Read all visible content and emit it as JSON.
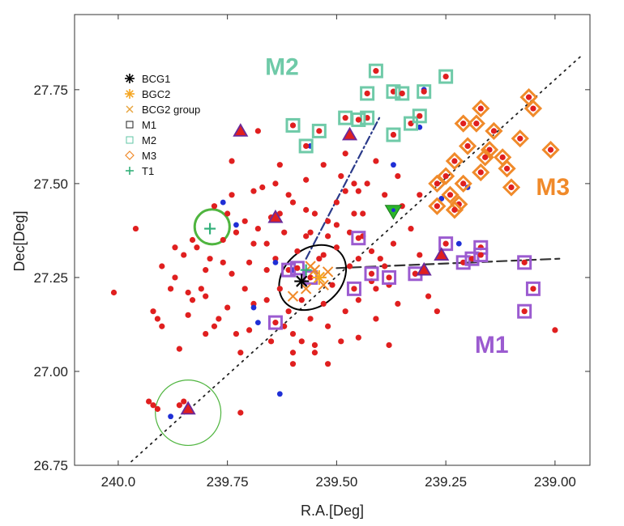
{
  "chart_data": {
    "type": "scatter",
    "xlabel": "R.A.[Deg]",
    "ylabel": "Dec[Deg]",
    "xlim": [
      240.1,
      238.92
    ],
    "ylim": [
      26.75,
      27.95
    ],
    "x_ticks": [
      240.0,
      239.75,
      239.5,
      239.25,
      239.0
    ],
    "x_tick_labels": [
      "240.0",
      "239.75",
      "239.50",
      "239.25",
      "239.00"
    ],
    "y_ticks": [
      26.75,
      27.0,
      27.25,
      27.5,
      27.75
    ],
    "y_tick_labels": [
      "26.75",
      "27.00",
      "27.25",
      "27.50",
      "27.75"
    ],
    "grid": false,
    "legend_position": "top-left",
    "legend": [
      {
        "label": "BCG1",
        "marker": "asterisk",
        "color": "#000000"
      },
      {
        "label": "BGC2",
        "marker": "asterisk",
        "color": "#f5a623"
      },
      {
        "label": "BCG2 group",
        "marker": "x",
        "color": "#e8a33c"
      },
      {
        "label": "M1",
        "marker": "square",
        "color": "#222222"
      },
      {
        "label": "M2",
        "marker": "square",
        "color": "#5fc4a4"
      },
      {
        "label": "M3",
        "marker": "diamond",
        "color": "#f08a2a"
      },
      {
        "label": "T1",
        "marker": "plus",
        "color": "#33b07a"
      }
    ],
    "group_labels": [
      {
        "text": "M2",
        "x": 239.625,
        "y": 27.79,
        "color": "#6fcaa8"
      },
      {
        "text": "M3",
        "x": 239.005,
        "y": 27.47,
        "color": "#f08a2a"
      },
      {
        "text": "M1",
        "x": 239.145,
        "y": 27.05,
        "color": "#9b5bd0"
      }
    ],
    "colors": {
      "member": "#e01f1f",
      "blue": "#1f2fd6",
      "m1_square": "#9b5bd0",
      "m2_square": "#6fcaa8",
      "m3_diamond": "#f08a2a",
      "t1": "#33b07a",
      "triangle_edge": "#6a2a9a",
      "ellipse": "#000000",
      "circle": "#4fb53f",
      "dash_line": "#333333",
      "dashdot_line": "#2a3a8a"
    },
    "series": [
      {
        "name": "M1",
        "marker": "square",
        "points": [
          [
            239.45,
            27.355
          ],
          [
            239.46,
            27.22
          ],
          [
            239.42,
            27.26
          ],
          [
            239.38,
            27.25
          ],
          [
            239.32,
            27.26
          ],
          [
            239.25,
            27.34
          ],
          [
            239.21,
            27.29
          ],
          [
            239.19,
            27.3
          ],
          [
            239.17,
            27.33
          ],
          [
            239.17,
            27.31
          ],
          [
            239.07,
            27.29
          ],
          [
            239.05,
            27.22
          ],
          [
            239.07,
            27.16
          ],
          [
            239.61,
            27.27
          ],
          [
            239.56,
            27.25
          ],
          [
            239.59,
            27.275
          ],
          [
            239.64,
            27.13
          ]
        ]
      },
      {
        "name": "M2",
        "marker": "square",
        "points": [
          [
            239.41,
            27.8
          ],
          [
            239.37,
            27.745
          ],
          [
            239.35,
            27.74
          ],
          [
            239.3,
            27.745
          ],
          [
            239.25,
            27.785
          ],
          [
            239.43,
            27.74
          ],
          [
            239.37,
            27.63
          ],
          [
            239.33,
            27.66
          ],
          [
            239.31,
            27.68
          ],
          [
            239.43,
            27.675
          ],
          [
            239.45,
            27.67
          ],
          [
            239.48,
            27.675
          ],
          [
            239.54,
            27.64
          ],
          [
            239.57,
            27.6
          ],
          [
            239.6,
            27.655
          ]
        ]
      },
      {
        "name": "M3",
        "marker": "diamond",
        "points": [
          [
            239.23,
            27.56
          ],
          [
            239.2,
            27.6
          ],
          [
            239.21,
            27.5
          ],
          [
            239.17,
            27.53
          ],
          [
            239.18,
            27.66
          ],
          [
            239.14,
            27.64
          ],
          [
            239.15,
            27.59
          ],
          [
            239.12,
            27.57
          ],
          [
            239.11,
            27.54
          ],
          [
            239.1,
            27.49
          ],
          [
            239.08,
            27.62
          ],
          [
            239.06,
            27.73
          ],
          [
            239.05,
            27.7
          ],
          [
            239.01,
            27.59
          ],
          [
            239.25,
            27.52
          ],
          [
            239.27,
            27.44
          ],
          [
            239.24,
            27.47
          ],
          [
            239.22,
            27.445
          ],
          [
            239.23,
            27.43
          ],
          [
            239.27,
            27.5
          ],
          [
            239.17,
            27.7
          ],
          [
            239.16,
            27.57
          ],
          [
            239.21,
            27.66
          ]
        ]
      },
      {
        "name": "T1",
        "marker": "plus",
        "points": [
          [
            239.79,
            27.38
          ],
          [
            239.57,
            27.27
          ]
        ]
      },
      {
        "name": "BCG1",
        "marker": "asterisk",
        "points": [
          [
            239.58,
            27.24
          ]
        ]
      },
      {
        "name": "BGC2",
        "marker": "asterisk",
        "points": [
          [
            239.54,
            27.25
          ]
        ]
      },
      {
        "name": "BCG2 group",
        "marker": "x",
        "points": [
          [
            239.57,
            27.22
          ],
          [
            239.55,
            27.27
          ],
          [
            239.53,
            27.23
          ],
          [
            239.6,
            27.2
          ],
          [
            239.52,
            27.265
          ],
          [
            239.56,
            27.28
          ]
        ]
      },
      {
        "name": "",
        "marker": "dot-red",
        "points": [
          [
            240.01,
            27.21
          ],
          [
            239.96,
            27.38
          ],
          [
            239.92,
            27.16
          ],
          [
            239.91,
            27.14
          ],
          [
            239.9,
            27.12
          ],
          [
            239.9,
            27.28
          ],
          [
            239.88,
            27.22
          ],
          [
            239.87,
            27.25
          ],
          [
            239.86,
            27.06
          ],
          [
            239.85,
            27.31
          ],
          [
            239.84,
            27.15
          ],
          [
            239.83,
            27.35
          ],
          [
            239.82,
            27.33
          ],
          [
            239.81,
            27.22
          ],
          [
            239.8,
            27.2
          ],
          [
            239.8,
            27.1
          ],
          [
            239.78,
            27.12
          ],
          [
            239.77,
            27.14
          ],
          [
            239.76,
            27.29
          ],
          [
            239.75,
            27.17
          ],
          [
            239.74,
            27.47
          ],
          [
            239.74,
            27.56
          ],
          [
            239.73,
            27.1
          ],
          [
            239.72,
            27.05
          ],
          [
            239.71,
            27.22
          ],
          [
            239.7,
            27.29
          ],
          [
            239.7,
            27.11
          ],
          [
            239.69,
            27.18
          ],
          [
            239.68,
            27.38
          ],
          [
            239.68,
            27.64
          ],
          [
            239.67,
            27.49
          ],
          [
            239.66,
            27.34
          ],
          [
            239.66,
            27.27
          ],
          [
            239.65,
            27.08
          ],
          [
            239.64,
            27.5
          ],
          [
            239.63,
            27.42
          ],
          [
            239.63,
            27.22
          ],
          [
            239.62,
            27.37
          ],
          [
            239.62,
            27.12
          ],
          [
            239.61,
            27.16
          ],
          [
            239.6,
            27.45
          ],
          [
            239.6,
            27.05
          ],
          [
            239.59,
            27.32
          ],
          [
            239.58,
            27.19
          ],
          [
            239.57,
            27.36
          ],
          [
            239.56,
            27.14
          ],
          [
            239.55,
            27.42
          ],
          [
            239.55,
            27.05
          ],
          [
            239.54,
            27.3
          ],
          [
            239.53,
            27.18
          ],
          [
            239.52,
            27.4
          ],
          [
            239.52,
            27.12
          ],
          [
            239.51,
            27.23
          ],
          [
            239.5,
            27.45
          ],
          [
            239.5,
            27.33
          ],
          [
            239.49,
            27.08
          ],
          [
            239.48,
            27.16
          ],
          [
            239.47,
            27.37
          ],
          [
            239.46,
            27.42
          ],
          [
            239.45,
            27.3
          ],
          [
            239.45,
            27.19
          ],
          [
            239.44,
            27.36
          ],
          [
            239.43,
            27.5
          ],
          [
            239.42,
            27.24
          ],
          [
            239.41,
            27.14
          ],
          [
            239.41,
            27.56
          ],
          [
            239.4,
            27.3
          ],
          [
            239.39,
            27.47
          ],
          [
            239.38,
            27.23
          ],
          [
            239.37,
            27.34
          ],
          [
            239.36,
            27.18
          ],
          [
            239.35,
            27.44
          ],
          [
            239.33,
            27.38
          ],
          [
            239.31,
            27.47
          ],
          [
            239.29,
            27.2
          ],
          [
            239.27,
            27.16
          ],
          [
            239.32,
            27.26
          ],
          [
            239.46,
            27.5
          ],
          [
            239.48,
            27.58
          ],
          [
            239.49,
            27.52
          ],
          [
            239.53,
            27.55
          ],
          [
            239.57,
            27.51
          ],
          [
            239.61,
            27.47
          ],
          [
            239.65,
            27.41
          ],
          [
            239.93,
            26.92
          ],
          [
            239.92,
            26.91
          ],
          [
            239.91,
            26.9
          ],
          [
            239.86,
            26.91
          ],
          [
            239.85,
            26.92
          ],
          [
            239.72,
            26.89
          ],
          [
            239.6,
            27.02
          ],
          [
            239.55,
            27.07
          ],
          [
            239.38,
            27.07
          ],
          [
            239.31,
            27.31
          ],
          [
            239.69,
            27.34
          ],
          [
            239.73,
            27.37
          ],
          [
            239.71,
            27.4
          ],
          [
            239.76,
            27.35
          ],
          [
            239.57,
            27.43
          ],
          [
            239.5,
            27.39
          ],
          [
            239.44,
            27.42
          ],
          [
            239.47,
            27.28
          ],
          [
            239.52,
            27.36
          ],
          [
            239.42,
            27.32
          ],
          [
            239.45,
            27.09
          ],
          [
            239.0,
            27.11
          ],
          [
            239.78,
            27.44
          ],
          [
            239.84,
            27.21
          ],
          [
            239.8,
            27.27
          ],
          [
            239.64,
            27.3
          ],
          [
            239.6,
            27.1
          ],
          [
            239.66,
            27.19
          ],
          [
            239.58,
            27.08
          ],
          [
            239.52,
            27.02
          ],
          [
            239.48,
            27.48
          ],
          [
            239.39,
            27.28
          ],
          [
            239.36,
            27.52
          ],
          [
            239.63,
            27.55
          ],
          [
            239.69,
            27.48
          ],
          [
            239.75,
            27.42
          ],
          [
            239.83,
            27.19
          ],
          [
            239.87,
            27.33
          ],
          [
            239.79,
            27.3
          ],
          [
            239.74,
            27.26
          ],
          [
            239.56,
            27.37
          ],
          [
            239.53,
            27.31
          ],
          [
            239.41,
            27.22
          ],
          [
            239.45,
            27.48
          ]
        ]
      },
      {
        "name": "",
        "marker": "dot-blue",
        "points": [
          [
            239.88,
            26.88
          ],
          [
            239.76,
            27.45
          ],
          [
            239.69,
            27.17
          ],
          [
            239.68,
            27.13
          ],
          [
            239.64,
            27.29
          ],
          [
            239.63,
            26.94
          ],
          [
            239.56,
            27.6
          ],
          [
            239.6,
            27.27
          ],
          [
            239.37,
            27.55
          ],
          [
            239.2,
            27.49
          ],
          [
            239.26,
            27.46
          ],
          [
            239.22,
            27.34
          ],
          [
            239.3,
            27.75
          ],
          [
            239.31,
            27.65
          ],
          [
            239.73,
            27.39
          ]
        ]
      },
      {
        "name": "",
        "marker": "triangle",
        "points": [
          [
            239.84,
            26.9
          ],
          [
            239.72,
            27.64
          ],
          [
            239.64,
            27.41
          ],
          [
            239.47,
            27.63
          ],
          [
            239.26,
            27.31
          ],
          [
            239.3,
            27.27
          ]
        ]
      },
      {
        "name": "",
        "marker": "triangle-down-green",
        "points": [
          [
            239.37,
            27.425
          ]
        ]
      }
    ],
    "lines": [
      {
        "style": "dotted",
        "points": [
          [
            239.97,
            26.76
          ],
          [
            238.94,
            27.84
          ]
        ]
      },
      {
        "style": "dashed",
        "points": [
          [
            239.5,
            27.275
          ],
          [
            238.99,
            27.3
          ]
        ]
      },
      {
        "style": "dash-dot",
        "points": [
          [
            239.57,
            27.3
          ],
          [
            239.4,
            27.68
          ]
        ]
      }
    ],
    "ellipse": {
      "center": [
        239.555,
        27.25
      ],
      "rx": 0.085,
      "ry": 0.065,
      "angle_deg": 42
    },
    "circles": [
      {
        "center": [
          239.84,
          26.89
        ],
        "r": 0.075,
        "stroke": 1.2
      },
      {
        "center": [
          239.785,
          27.385
        ],
        "r": 0.04,
        "stroke": 3
      }
    ]
  }
}
